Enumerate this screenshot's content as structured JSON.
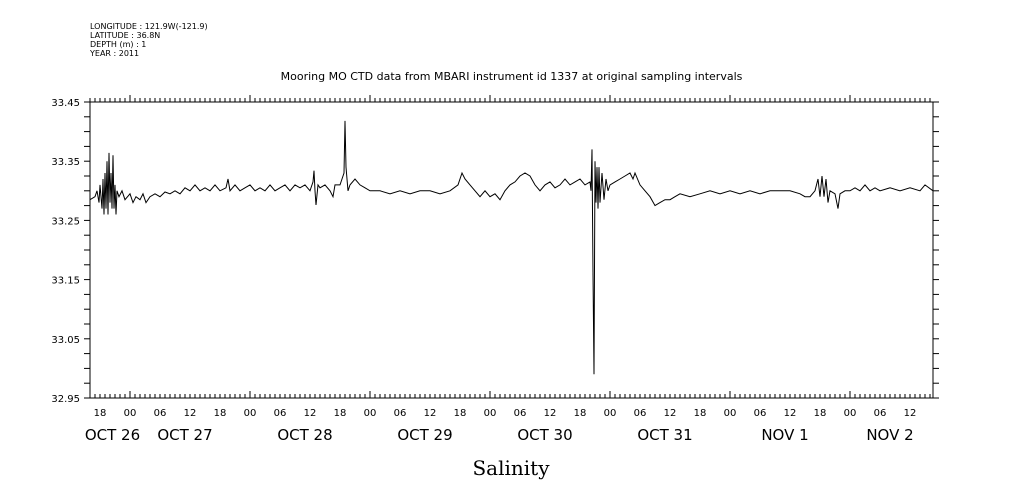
{
  "header": {
    "longitude": "LONGITUDE : 121.9W(-121.9)",
    "latitude": "LATITUDE : 36.8N",
    "depth": "DEPTH (m) : 1",
    "year": "YEAR : 2011"
  },
  "chart_data": {
    "type": "line",
    "title": "Mooring MO CTD data from MBARI instrument id 1337 at original sampling intervals",
    "xlabel": "",
    "ylabel": "",
    "caption": "Salinity",
    "x_units": "hours since OCT 26 00:00 (2011)",
    "xlim": [
      16,
      184.6
    ],
    "ylim": [
      32.95,
      33.45
    ],
    "y_ticks": [
      "33.45",
      "33.35",
      "33.25",
      "33.15",
      "33.05",
      "32.95"
    ],
    "x_hour_ticks": [
      {
        "h": 18,
        "label": "18"
      },
      {
        "h": 24,
        "label": "00"
      },
      {
        "h": 30,
        "label": "06"
      },
      {
        "h": 36,
        "label": "12"
      },
      {
        "h": 42,
        "label": "18"
      },
      {
        "h": 48,
        "label": "00"
      },
      {
        "h": 54,
        "label": "06"
      },
      {
        "h": 60,
        "label": "12"
      },
      {
        "h": 66,
        "label": "18"
      },
      {
        "h": 72,
        "label": "00"
      },
      {
        "h": 78,
        "label": "06"
      },
      {
        "h": 84,
        "label": "12"
      },
      {
        "h": 90,
        "label": "18"
      },
      {
        "h": 96,
        "label": "00"
      },
      {
        "h": 102,
        "label": "06"
      },
      {
        "h": 108,
        "label": "12"
      },
      {
        "h": 114,
        "label": "18"
      },
      {
        "h": 120,
        "label": "00"
      },
      {
        "h": 126,
        "label": "06"
      },
      {
        "h": 132,
        "label": "12"
      },
      {
        "h": 138,
        "label": "18"
      },
      {
        "h": 144,
        "label": "00"
      },
      {
        "h": 150,
        "label": "06"
      },
      {
        "h": 156,
        "label": "12"
      },
      {
        "h": 162,
        "label": "18"
      },
      {
        "h": 168,
        "label": "00"
      },
      {
        "h": 174,
        "label": "06"
      },
      {
        "h": 180,
        "label": "12"
      }
    ],
    "x_day_labels": [
      {
        "h": 20.5,
        "label": "OCT 26"
      },
      {
        "h": 35,
        "label": "OCT 27"
      },
      {
        "h": 59,
        "label": "OCT 28"
      },
      {
        "h": 83,
        "label": "OCT 29"
      },
      {
        "h": 107,
        "label": "OCT 30"
      },
      {
        "h": 131,
        "label": "OCT 31"
      },
      {
        "h": 155,
        "label": "NOV  1"
      },
      {
        "h": 176,
        "label": "NOV  2"
      }
    ],
    "series": [
      {
        "name": "Salinity",
        "points": [
          [
            16,
            33.285
          ],
          [
            17,
            33.29
          ],
          [
            17.4,
            33.3
          ],
          [
            17.8,
            33.28
          ],
          [
            18,
            33.31
          ],
          [
            18.4,
            33.27
          ],
          [
            18.6,
            33.32
          ],
          [
            18.8,
            33.26
          ],
          [
            19,
            33.33
          ],
          [
            19.2,
            33.27
          ],
          [
            19.4,
            33.35
          ],
          [
            19.6,
            33.26
          ],
          [
            19.8,
            33.364
          ],
          [
            20.0,
            33.28
          ],
          [
            20.2,
            33.33
          ],
          [
            20.4,
            33.27
          ],
          [
            20.6,
            33.36
          ],
          [
            20.8,
            33.27
          ],
          [
            21,
            33.31
          ],
          [
            21.2,
            33.26
          ],
          [
            21.4,
            33.3
          ],
          [
            21.8,
            33.29
          ],
          [
            22.4,
            33.3
          ],
          [
            23,
            33.285
          ],
          [
            24,
            33.295
          ],
          [
            24.6,
            33.28
          ],
          [
            25.2,
            33.29
          ],
          [
            26,
            33.285
          ],
          [
            26.6,
            33.295
          ],
          [
            27.2,
            33.28
          ],
          [
            28,
            33.29
          ],
          [
            29,
            33.295
          ],
          [
            30,
            33.29
          ],
          [
            31,
            33.298
          ],
          [
            32,
            33.295
          ],
          [
            33,
            33.3
          ],
          [
            34,
            33.295
          ],
          [
            35,
            33.305
          ],
          [
            36,
            33.3
          ],
          [
            37,
            33.31
          ],
          [
            38,
            33.3
          ],
          [
            39,
            33.305
          ],
          [
            40,
            33.3
          ],
          [
            41,
            33.31
          ],
          [
            42,
            33.3
          ],
          [
            43.2,
            33.305
          ],
          [
            43.6,
            33.32
          ],
          [
            44,
            33.3
          ],
          [
            45,
            33.31
          ],
          [
            46,
            33.3
          ],
          [
            47,
            33.305
          ],
          [
            48,
            33.31
          ],
          [
            49,
            33.3
          ],
          [
            50,
            33.305
          ],
          [
            51,
            33.3
          ],
          [
            52,
            33.31
          ],
          [
            53,
            33.3
          ],
          [
            54,
            33.305
          ],
          [
            55,
            33.31
          ],
          [
            56,
            33.3
          ],
          [
            57,
            33.31
          ],
          [
            58,
            33.305
          ],
          [
            59,
            33.31
          ],
          [
            60,
            33.3
          ],
          [
            60.6,
            33.315
          ],
          [
            60.8,
            33.334
          ],
          [
            61.0,
            33.3
          ],
          [
            61.2,
            33.276
          ],
          [
            61.6,
            33.31
          ],
          [
            62,
            33.305
          ],
          [
            63,
            33.31
          ],
          [
            64,
            33.3
          ],
          [
            64.6,
            33.29
          ],
          [
            65,
            33.31
          ],
          [
            66,
            33.31
          ],
          [
            66.4,
            33.32
          ],
          [
            66.8,
            33.33
          ],
          [
            67.0,
            33.418
          ],
          [
            67.2,
            33.34
          ],
          [
            67.4,
            33.32
          ],
          [
            67.6,
            33.3
          ],
          [
            68,
            33.31
          ],
          [
            69,
            33.32
          ],
          [
            70,
            33.31
          ],
          [
            71,
            33.305
          ],
          [
            72,
            33.3
          ],
          [
            74,
            33.3
          ],
          [
            76,
            33.295
          ],
          [
            78,
            33.3
          ],
          [
            80,
            33.295
          ],
          [
            82,
            33.3
          ],
          [
            84,
            33.3
          ],
          [
            86,
            33.295
          ],
          [
            88,
            33.3
          ],
          [
            89.6,
            33.31
          ],
          [
            90.4,
            33.33
          ],
          [
            91,
            33.32
          ],
          [
            92,
            33.31
          ],
          [
            93,
            33.3
          ],
          [
            94,
            33.29
          ],
          [
            95,
            33.3
          ],
          [
            96,
            33.29
          ],
          [
            97,
            33.295
          ],
          [
            98,
            33.285
          ],
          [
            99,
            33.3
          ],
          [
            100,
            33.31
          ],
          [
            101,
            33.315
          ],
          [
            102,
            33.325
          ],
          [
            103,
            33.33
          ],
          [
            104,
            33.325
          ],
          [
            105,
            33.31
          ],
          [
            106,
            33.3
          ],
          [
            107,
            33.31
          ],
          [
            108,
            33.315
          ],
          [
            109,
            33.305
          ],
          [
            110,
            33.31
          ],
          [
            111,
            33.32
          ],
          [
            112,
            33.31
          ],
          [
            113,
            33.315
          ],
          [
            114,
            33.32
          ],
          [
            115,
            33.31
          ],
          [
            116,
            33.315
          ],
          [
            116.2,
            33.3
          ],
          [
            116.4,
            33.37
          ],
          [
            116.6,
            33.16
          ],
          [
            116.8,
            32.99
          ],
          [
            117,
            33.35
          ],
          [
            117.2,
            33.28
          ],
          [
            117.4,
            33.34
          ],
          [
            117.6,
            33.27
          ],
          [
            117.8,
            33.34
          ],
          [
            118,
            33.28
          ],
          [
            118.4,
            33.33
          ],
          [
            118.8,
            33.285
          ],
          [
            119.2,
            33.32
          ],
          [
            119.6,
            33.3
          ],
          [
            120,
            33.31
          ],
          [
            121,
            33.315
          ],
          [
            122,
            33.32
          ],
          [
            123,
            33.325
          ],
          [
            124,
            33.33
          ],
          [
            124.6,
            33.32
          ],
          [
            125,
            33.33
          ],
          [
            126,
            33.31
          ],
          [
            127,
            33.3
          ],
          [
            128,
            33.29
          ],
          [
            129,
            33.275
          ],
          [
            130,
            33.28
          ],
          [
            131,
            33.285
          ],
          [
            132,
            33.285
          ],
          [
            133,
            33.29
          ],
          [
            134,
            33.295
          ],
          [
            136,
            33.29
          ],
          [
            138,
            33.295
          ],
          [
            140,
            33.3
          ],
          [
            142,
            33.295
          ],
          [
            144,
            33.3
          ],
          [
            146,
            33.295
          ],
          [
            148,
            33.3
          ],
          [
            150,
            33.295
          ],
          [
            152,
            33.3
          ],
          [
            154,
            33.3
          ],
          [
            156,
            33.3
          ],
          [
            158,
            33.295
          ],
          [
            159,
            33.29
          ],
          [
            160,
            33.29
          ],
          [
            161,
            33.3
          ],
          [
            161.6,
            33.32
          ],
          [
            162,
            33.29
          ],
          [
            162.4,
            33.325
          ],
          [
            162.8,
            33.29
          ],
          [
            163.2,
            33.32
          ],
          [
            163.6,
            33.28
          ],
          [
            164,
            33.3
          ],
          [
            165,
            33.295
          ],
          [
            165.6,
            33.27
          ],
          [
            166,
            33.295
          ],
          [
            167,
            33.3
          ],
          [
            168,
            33.3
          ],
          [
            169,
            33.305
          ],
          [
            170,
            33.3
          ],
          [
            171,
            33.31
          ],
          [
            172,
            33.3
          ],
          [
            173,
            33.305
          ],
          [
            174,
            33.3
          ],
          [
            176,
            33.305
          ],
          [
            178,
            33.3
          ],
          [
            180,
            33.305
          ],
          [
            182,
            33.3
          ],
          [
            183,
            33.31
          ],
          [
            184.6,
            33.3
          ]
        ]
      }
    ]
  }
}
